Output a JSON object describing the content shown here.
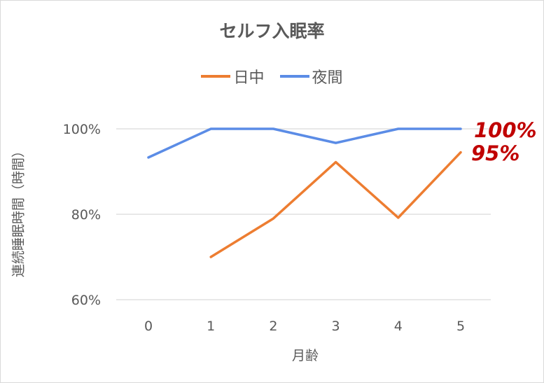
{
  "chart_data": {
    "type": "line",
    "title": "セルフ入眠率",
    "xlabel": "月齢",
    "ylabel": "連続睡眠時間（時間）",
    "categories": [
      "0",
      "1",
      "2",
      "3",
      "4",
      "5"
    ],
    "y_ticks": [
      "60%",
      "80%",
      "100%"
    ],
    "ylim": [
      0.6,
      1.0
    ],
    "grid": true,
    "legend_position": "top",
    "series": [
      {
        "name": "日中",
        "color": "#ed7d31",
        "values": [
          null,
          0.7,
          0.79,
          0.922,
          0.792,
          0.945
        ]
      },
      {
        "name": "夜間",
        "color": "#5b8ce6",
        "values": [
          0.933,
          1.0,
          1.0,
          0.967,
          1.0,
          1.0
        ]
      }
    ],
    "annotations": [
      {
        "text": "100%",
        "color": "#c00000"
      },
      {
        "text": "95%",
        "color": "#c00000"
      }
    ]
  }
}
